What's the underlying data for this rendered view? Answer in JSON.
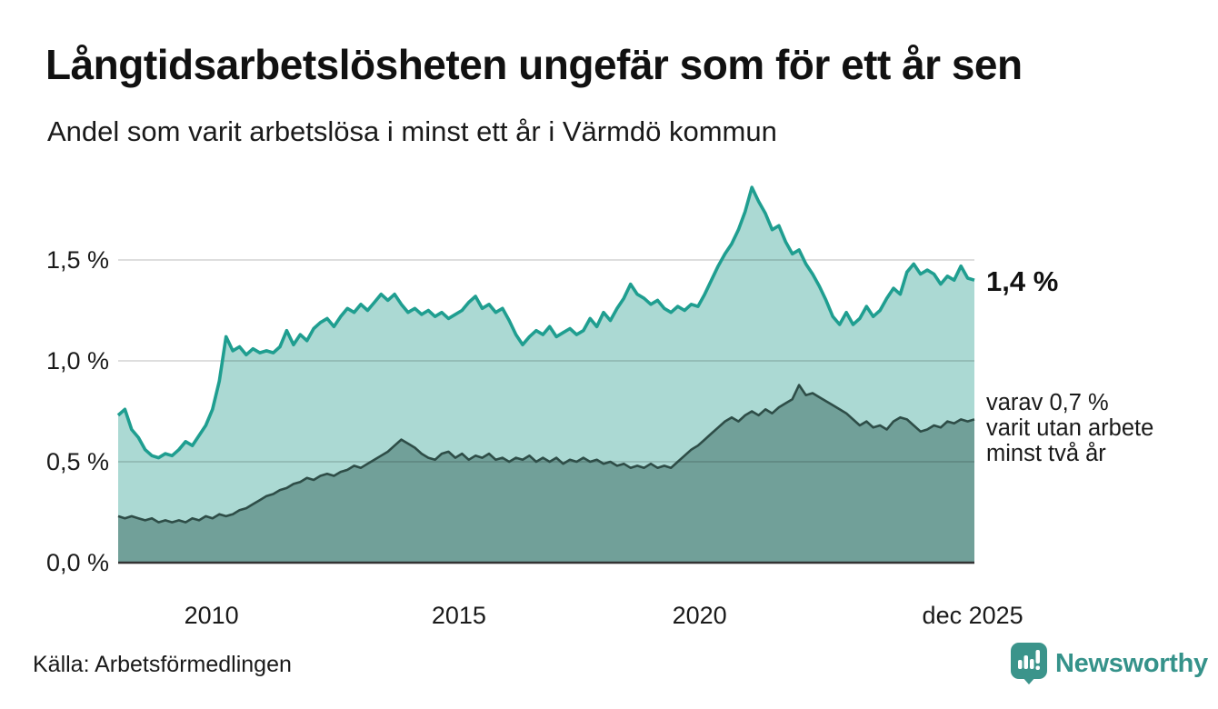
{
  "header": {
    "title": "Långtidsarbetslösheten ungefär som för ett år sen",
    "subtitle": "Andel som varit arbetslösa i minst ett år i Värmdö kommun"
  },
  "chart_data": {
    "type": "area",
    "title": "Långtidsarbetslösheten ungefär som för ett år sen",
    "subtitle": "Andel som varit arbetslösa i minst ett år i Värmdö kommun",
    "x_start": "jan 2008",
    "x_end": "dec 2025",
    "x_ticks": [
      {
        "label": "2010",
        "pos": 0.109
      },
      {
        "label": "2015",
        "pos": 0.398
      },
      {
        "label": "2020",
        "pos": 0.679
      },
      {
        "label": "dec 2025",
        "pos": 0.998
      }
    ],
    "y_ticks": [
      {
        "label": "0,0 %",
        "value": 0.0
      },
      {
        "label": "0,5 %",
        "value": 0.5
      },
      {
        "label": "1,0 %",
        "value": 1.0
      },
      {
        "label": "1,5 %",
        "value": 1.5
      }
    ],
    "ylim": [
      0,
      1.95
    ],
    "grid": true,
    "unit": "%",
    "series": [
      {
        "name": "Andel som varit arbetslösa minst ett år",
        "line_color": "#1f9e90",
        "fill_color": "#abd9d3",
        "last_value": 1.4,
        "values": [
          0.73,
          0.76,
          0.66,
          0.62,
          0.56,
          0.53,
          0.52,
          0.54,
          0.53,
          0.56,
          0.6,
          0.58,
          0.63,
          0.68,
          0.76,
          0.9,
          1.12,
          1.05,
          1.07,
          1.03,
          1.06,
          1.04,
          1.05,
          1.04,
          1.07,
          1.15,
          1.08,
          1.13,
          1.1,
          1.16,
          1.19,
          1.21,
          1.17,
          1.22,
          1.26,
          1.24,
          1.28,
          1.25,
          1.29,
          1.33,
          1.3,
          1.33,
          1.28,
          1.24,
          1.26,
          1.23,
          1.25,
          1.22,
          1.24,
          1.21,
          1.23,
          1.25,
          1.29,
          1.32,
          1.26,
          1.28,
          1.24,
          1.26,
          1.2,
          1.13,
          1.08,
          1.12,
          1.15,
          1.13,
          1.17,
          1.12,
          1.14,
          1.16,
          1.13,
          1.15,
          1.21,
          1.17,
          1.24,
          1.2,
          1.26,
          1.31,
          1.38,
          1.33,
          1.31,
          1.28,
          1.3,
          1.26,
          1.24,
          1.27,
          1.25,
          1.28,
          1.27,
          1.33,
          1.4,
          1.47,
          1.53,
          1.58,
          1.65,
          1.74,
          1.86,
          1.79,
          1.73,
          1.65,
          1.67,
          1.59,
          1.53,
          1.55,
          1.48,
          1.43,
          1.37,
          1.3,
          1.22,
          1.18,
          1.24,
          1.18,
          1.21,
          1.27,
          1.22,
          1.25,
          1.31,
          1.36,
          1.33,
          1.44,
          1.48,
          1.43,
          1.45,
          1.43,
          1.38,
          1.42,
          1.4,
          1.47,
          1.41,
          1.4
        ]
      },
      {
        "name": "Andel som varit utan arbete minst två år",
        "line_color": "#2e4d47",
        "fill_color": "#71a099",
        "last_value": 0.7,
        "values": [
          0.23,
          0.22,
          0.23,
          0.22,
          0.21,
          0.22,
          0.2,
          0.21,
          0.2,
          0.21,
          0.2,
          0.22,
          0.21,
          0.23,
          0.22,
          0.24,
          0.23,
          0.24,
          0.26,
          0.27,
          0.29,
          0.31,
          0.33,
          0.34,
          0.36,
          0.37,
          0.39,
          0.4,
          0.42,
          0.41,
          0.43,
          0.44,
          0.43,
          0.45,
          0.46,
          0.48,
          0.47,
          0.49,
          0.51,
          0.53,
          0.55,
          0.58,
          0.61,
          0.59,
          0.57,
          0.54,
          0.52,
          0.51,
          0.54,
          0.55,
          0.52,
          0.54,
          0.51,
          0.53,
          0.52,
          0.54,
          0.51,
          0.52,
          0.5,
          0.52,
          0.51,
          0.53,
          0.5,
          0.52,
          0.5,
          0.52,
          0.49,
          0.51,
          0.5,
          0.52,
          0.5,
          0.51,
          0.49,
          0.5,
          0.48,
          0.49,
          0.47,
          0.48,
          0.47,
          0.49,
          0.47,
          0.48,
          0.47,
          0.5,
          0.53,
          0.56,
          0.58,
          0.61,
          0.64,
          0.67,
          0.7,
          0.72,
          0.7,
          0.73,
          0.75,
          0.73,
          0.76,
          0.74,
          0.77,
          0.79,
          0.81,
          0.88,
          0.83,
          0.84,
          0.82,
          0.8,
          0.78,
          0.76,
          0.74,
          0.71,
          0.68,
          0.7,
          0.67,
          0.68,
          0.66,
          0.7,
          0.72,
          0.71,
          0.68,
          0.65,
          0.66,
          0.68,
          0.67,
          0.7,
          0.69,
          0.71,
          0.7,
          0.71
        ]
      }
    ],
    "annotations": {
      "latest": "1,4 %",
      "secondary_lines": [
        "varav 0,7 %",
        "varit utan arbete",
        "minst två år"
      ]
    },
    "axis_color": "#333333",
    "gridline_color": "#dedede"
  },
  "footer": {
    "source": "Källa: Arbetsförmedlingen",
    "brand": "Newsworthy",
    "brand_color": "#3b948b"
  }
}
